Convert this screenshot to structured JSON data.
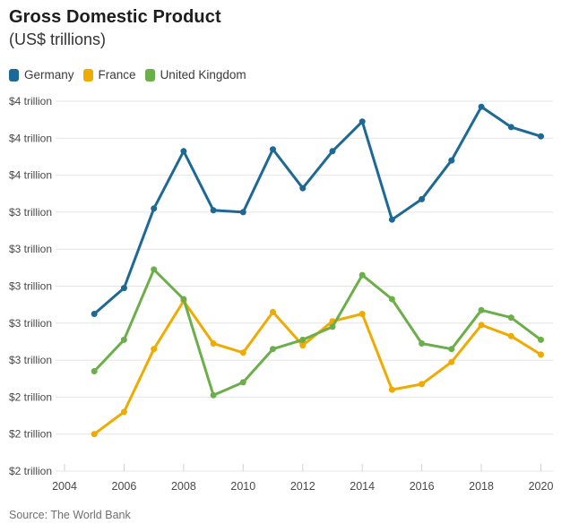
{
  "header": {
    "title": "Gross Domestic Product",
    "subtitle": "(US$ trillions)"
  },
  "source": "Source: The World Bank",
  "chart_data": {
    "type": "line",
    "unit": "US$ trillions",
    "x": [
      2005,
      2006,
      2007,
      2008,
      2009,
      2010,
      2011,
      2012,
      2013,
      2014,
      2015,
      2016,
      2017,
      2018,
      2019,
      2020
    ],
    "series": [
      {
        "name": "Germany",
        "color": "#1d6996",
        "values": [
          2.85,
          2.99,
          3.42,
          3.73,
          3.41,
          3.4,
          3.74,
          3.53,
          3.73,
          3.89,
          3.36,
          3.47,
          3.68,
          3.97,
          3.86,
          3.81
        ]
      },
      {
        "name": "France",
        "color": "#f0ab00",
        "values": [
          2.2,
          2.32,
          2.66,
          2.92,
          2.69,
          2.64,
          2.86,
          2.68,
          2.81,
          2.85,
          2.44,
          2.47,
          2.59,
          2.79,
          2.73,
          2.63
        ]
      },
      {
        "name": "United Kingdom",
        "color": "#6cae4a",
        "values": [
          2.54,
          2.71,
          3.09,
          2.93,
          2.41,
          2.48,
          2.66,
          2.71,
          2.78,
          3.06,
          2.93,
          2.69,
          2.66,
          2.87,
          2.83,
          2.71
        ]
      }
    ],
    "xlim": [
      2004,
      2020
    ],
    "ylim": [
      2.0,
      4.0
    ],
    "x_tick_labels": [
      "2004",
      "2006",
      "2008",
      "2010",
      "2012",
      "2014",
      "2016",
      "2018",
      "2020"
    ],
    "y_tick_values": [
      4.0,
      3.8,
      3.6,
      3.4,
      3.2,
      3.0,
      2.8,
      2.6,
      2.4,
      2.2,
      2.0
    ],
    "y_tick_labels": [
      "$4 trillion",
      "$4 trillion",
      "$4 trillion",
      "$3 trillion",
      "$3 trillion",
      "$3 trillion",
      "$3 trillion",
      "$3 trillion",
      "$2 trillion",
      "$2 trillion",
      "$2 trillion"
    ],
    "grid": "horizontal",
    "legend_position": "top-left",
    "markers": true
  }
}
